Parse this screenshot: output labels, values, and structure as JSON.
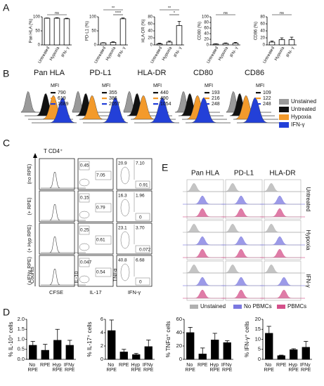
{
  "panel_labels": [
    "A",
    "B",
    "C",
    "D",
    "E"
  ],
  "chart_data": [
    {
      "type": "bar",
      "y_label": "Pan HLA (%)",
      "categories": [
        "Untreated",
        "Hypoxia",
        "IFN- γ"
      ],
      "values": [
        95,
        95,
        93
      ],
      "errors": [
        1,
        2,
        2
      ],
      "ylim": [
        0,
        100
      ],
      "yticks": [
        0,
        50,
        100
      ],
      "annotations": [
        "ns"
      ],
      "color": "#ffffff"
    },
    {
      "type": "bar",
      "y_label": "PD-L1 (%)",
      "categories": [
        "Untreated",
        "Hypoxia",
        "IFN- γ"
      ],
      "values": [
        7,
        9,
        93
      ],
      "errors": [
        1,
        2,
        3
      ],
      "ylim": [
        0,
        100
      ],
      "yticks": [
        0,
        50,
        100
      ],
      "annotations": [
        "**",
        "****"
      ],
      "color": "#ffffff"
    },
    {
      "type": "bar",
      "y_label": "HLA-DR (%)",
      "categories": [
        "Untreated",
        "Hypoxia",
        "IFN- γ"
      ],
      "values": [
        3,
        8,
        55
      ],
      "errors": [
        2,
        3,
        12
      ],
      "ylim": [
        0,
        80
      ],
      "yticks": [
        0,
        20,
        40,
        60,
        80
      ],
      "annotations": [
        "**",
        "*"
      ],
      "color": "#ffffff"
    },
    {
      "type": "bar",
      "y_label": "CD80 (%)",
      "categories": [
        "Untreated",
        "Hypoxia",
        "IFN- γ"
      ],
      "values": [
        3,
        5,
        6
      ],
      "errors": [
        1,
        2,
        3
      ],
      "ylim": [
        0,
        100
      ],
      "yticks": [
        0,
        20,
        40,
        60,
        80,
        100
      ],
      "annotations": [
        "ns"
      ],
      "color": "#ffffff"
    },
    {
      "type": "bar",
      "y_label": "CD86 (%)",
      "categories": [
        "Untreated",
        "Hypoxia",
        "IFN- γ"
      ],
      "values": [
        8,
        15,
        15
      ],
      "errors": [
        3,
        5,
        7
      ],
      "ylim": [
        0,
        80
      ],
      "yticks": [
        0,
        20,
        40,
        60,
        80
      ],
      "annotations": [
        "ns"
      ],
      "color": "#ffffff"
    },
    {
      "type": "bar",
      "y_label": "% IL-10⁺ cells",
      "categories": [
        "No RPE",
        "RPE",
        "Hyp RPE",
        "IFNγ RPE"
      ],
      "values": [
        0.7,
        0.45,
        0.95,
        0.7
      ],
      "errors": [
        0.2,
        0.3,
        0.55,
        0.25
      ],
      "ylim": [
        0,
        2
      ],
      "yticks": [
        {
          "value": 0,
          "label": "0.0"
        },
        {
          "value": 0.5,
          "label": "0.5"
        },
        {
          "value": 1,
          "label": "1.0"
        },
        {
          "value": 1.5,
          "label": "1.5"
        },
        {
          "value": 2,
          "label": "2.0"
        }
      ],
      "annotations": [],
      "color": "#000000"
    },
    {
      "type": "bar",
      "y_label": "% IL-17⁺ cells",
      "categories": [
        "No RPE",
        "RPE",
        "Hyp RPE",
        "IFNγ RPE"
      ],
      "values": [
        4.3,
        1.1,
        0.7,
        1.9
      ],
      "errors": [
        1.6,
        0.4,
        0.2,
        1.0
      ],
      "ylim": [
        0,
        6
      ],
      "yticks": [
        0,
        2,
        4,
        6
      ],
      "annotations": [],
      "color": "#000000"
    },
    {
      "type": "bar",
      "y_label": "% TNFα⁺ cells",
      "categories": [
        "No RPE",
        "RPE",
        "Hyp RPE",
        "IFNγ RPE"
      ],
      "values": [
        40,
        8,
        29,
        25
      ],
      "errors": [
        8,
        9,
        10,
        3
      ],
      "ylim": [
        0,
        60
      ],
      "yticks": [
        0,
        20,
        40,
        60
      ],
      "annotations": [],
      "color": "#000000"
    },
    {
      "type": "bar",
      "y_label": "% IFN-γ⁺ cells",
      "categories": [
        "No RPE",
        "RPE",
        "Hyp RPE",
        "IFNγ RPE"
      ],
      "values": [
        13,
        1.8,
        4.8,
        6
      ],
      "errors": [
        3.5,
        0.3,
        0.5,
        3
      ],
      "ylim": [
        0,
        20
      ],
      "yticks": [
        0,
        5,
        10,
        15,
        20
      ],
      "annotations": [],
      "color": "#000000"
    }
  ],
  "panel_b": {
    "histograms": [
      {
        "title": "Pan HLA",
        "mfi_label": "MFI",
        "mfi": [
          790,
          619,
          1689
        ]
      },
      {
        "title": "PD-L1",
        "mfi_label": "MFI",
        "mfi": [
          355,
          386,
          2057
        ]
      },
      {
        "title": "HLA-DR",
        "mfi_label": "MFI",
        "mfi": [
          440,
          490,
          1054
        ]
      },
      {
        "title": "CD80",
        "mfi_label": "MFI",
        "mfi": [
          193,
          216,
          248
        ]
      },
      {
        "title": "CD86",
        "mfi_label": "MFI",
        "mfi": [
          109,
          122,
          248
        ]
      }
    ],
    "legend": [
      {
        "name": "Unstained",
        "color": "#9a9a9a"
      },
      {
        "name": "Untreated",
        "color": "#111111"
      },
      {
        "name": "Hypoxia",
        "color": "#f39a2b"
      },
      {
        "name": "IFN-γ",
        "color": "#2340d8"
      }
    ]
  },
  "panel_c": {
    "title": "T CD4⁺",
    "rows": [
      "(no RPE)",
      "(+ RPE)",
      "(+ Hyp RPE)",
      "(+IFNγ RPE)"
    ],
    "axes": [
      "Counts",
      "CFSE",
      "IL-10",
      "IL-17",
      "TNFα",
      "IFN-γ"
    ],
    "il10_il17": [
      [
        "0.45",
        "7.05"
      ],
      [
        "0.15",
        "0.79"
      ],
      [
        "0.25",
        "0.61"
      ],
      [
        "0.047",
        "0.54"
      ]
    ],
    "tnf_ifn": [
      [
        "20.9",
        "7.10",
        "0.91"
      ],
      [
        "16.3",
        "1.96",
        "0"
      ],
      [
        "23.1",
        "3.70",
        "0.072"
      ],
      [
        "40.8",
        "6.68",
        "0"
      ]
    ]
  },
  "panel_e": {
    "columns": [
      "Pan HLA",
      "PD-L1",
      "HLA-DR"
    ],
    "rows": [
      "Untreated",
      "Hypoxia",
      "IFN-γ"
    ],
    "legend": [
      {
        "name": "Unstained",
        "color": "#b0b0b0"
      },
      {
        "name": "No PBMCs",
        "color": "#7b78e0"
      },
      {
        "name": "PBMCs",
        "color": "#d4508a"
      }
    ]
  }
}
